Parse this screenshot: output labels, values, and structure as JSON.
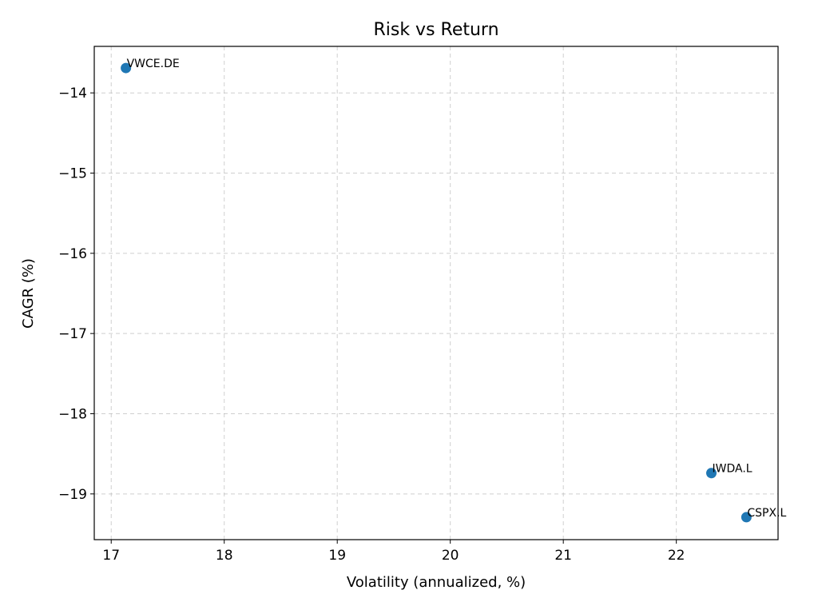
{
  "chart_data": {
    "type": "scatter",
    "title": "Risk vs Return",
    "xlabel": "Volatility (annualized, %)",
    "ylabel": "CAGR (%)",
    "xlim": [
      16.85,
      22.9
    ],
    "ylim": [
      -19.57,
      -13.42
    ],
    "xticks": [
      17,
      18,
      19,
      20,
      21,
      22
    ],
    "yticks": [
      -14,
      -15,
      -16,
      -17,
      -18,
      -19
    ],
    "grid": true,
    "point_color": "#1f77b4",
    "points": [
      {
        "label": "VWCE.DE",
        "x": 17.13,
        "y": -13.69
      },
      {
        "label": "IWDA.L",
        "x": 22.31,
        "y": -18.74
      },
      {
        "label": "CSPX.L",
        "x": 22.62,
        "y": -19.29
      }
    ]
  }
}
